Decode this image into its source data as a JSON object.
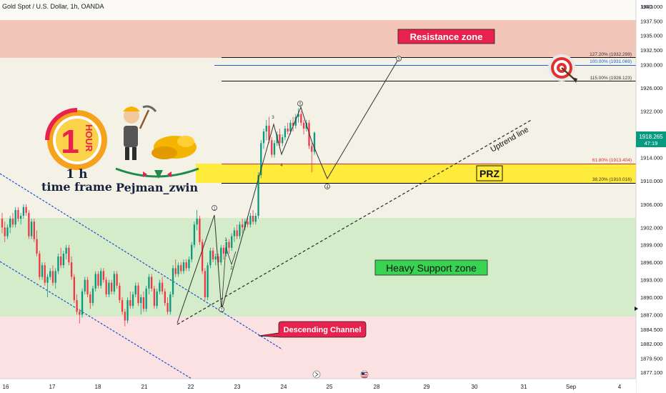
{
  "header": {
    "title": "Gold Spot / U.S. Dollar, 1h, OANDA"
  },
  "price_scale": {
    "currency": "USD",
    "ticks": [
      "1940.000",
      "1937.500",
      "1935.000",
      "1932.500",
      "1930.000",
      "1926.000",
      "1922.000",
      "1918.000",
      "1914.000",
      "1910.000",
      "1906.000",
      "1902.000",
      "1899.000",
      "1896.000",
      "1893.000",
      "1890.000",
      "1887.000",
      "1884.500",
      "1882.000",
      "1879.500",
      "1877.100"
    ],
    "last_price": "1918.265",
    "countdown": "47:19",
    "last_price_color": "#089981"
  },
  "time_scale": {
    "ticks": [
      "16",
      "17",
      "18",
      "21",
      "22",
      "23",
      "24",
      "25",
      "28",
      "29",
      "30",
      "31",
      "Sep",
      "4"
    ]
  },
  "zones": {
    "resistance": {
      "label": "Resistance zone",
      "color": "#f2c6b8",
      "label_bg": "#e8214e"
    },
    "support": {
      "label": "Heavy Support zone",
      "color": "#d4ecc9",
      "label_bg": "#39d353"
    },
    "lower": {
      "color": "#fbe1e1"
    },
    "prz": {
      "label": "PRZ",
      "color": "#ffeb3b"
    }
  },
  "fib_levels": [
    {
      "label": "127.20% (1932.299)"
    },
    {
      "label": "100.00% (1931.069)"
    },
    {
      "label": "115.00% (1928.123)"
    },
    {
      "label": "61.80% (1913.404)"
    },
    {
      "label": "38.20% (1910.016)"
    }
  ],
  "annotations": {
    "uptrend": "Uptrend line",
    "descending": "Descending Channel",
    "wave_points": [
      "1",
      "2",
      "3",
      "4",
      "5"
    ]
  },
  "badge": {
    "hour_digit": "1",
    "hour_word": "HOUR",
    "timeframe_1": "1 h",
    "timeframe_2": "time frame",
    "author": "Pejman_zwin"
  },
  "chart_data": {
    "type": "candlestick",
    "title": "Gold Spot / U.S. Dollar, 1h, OANDA",
    "y_unit": "USD",
    "ylim": [
      1876,
      1941
    ],
    "x_labels": [
      "16",
      "17",
      "18",
      "21",
      "22",
      "23",
      "24",
      "25",
      "28",
      "29",
      "30",
      "31",
      "Sep",
      "4"
    ],
    "last_price": 1918.265,
    "zones": [
      {
        "name": "Resistance zone",
        "from": 1932.3,
        "to": 1941.0
      },
      {
        "name": "PRZ",
        "from": 1910.016,
        "to": 1913.404
      },
      {
        "name": "Heavy Support zone",
        "from": 1887.0,
        "to": 1904.4
      }
    ],
    "fibonacci": [
      {
        "ratio": "127.20%",
        "price": 1932.299
      },
      {
        "ratio": "100.00%",
        "price": 1931.069
      },
      {
        "ratio": "115.00%",
        "price": 1928.123
      },
      {
        "ratio": "61.80%",
        "price": 1913.404
      },
      {
        "ratio": "38.20%",
        "price": 1910.016
      }
    ],
    "candles": [
      [
        1903.5,
        1904.5,
        1901.0,
        1902.0
      ],
      [
        1902.0,
        1903.0,
        1899.5,
        1900.5
      ],
      [
        1900.5,
        1902.5,
        1900.0,
        1902.0
      ],
      [
        1902.0,
        1904.0,
        1901.0,
        1903.5
      ],
      [
        1903.5,
        1904.5,
        1902.0,
        1902.5
      ],
      [
        1902.5,
        1905.5,
        1902.0,
        1905.0
      ],
      [
        1905.0,
        1905.5,
        1903.0,
        1903.5
      ],
      [
        1903.5,
        1904.5,
        1902.5,
        1904.0
      ],
      [
        1904.0,
        1906.0,
        1903.5,
        1905.5
      ],
      [
        1905.5,
        1906.0,
        1904.0,
        1904.5
      ],
      [
        1904.5,
        1905.0,
        1900.0,
        1900.5
      ],
      [
        1900.5,
        1903.5,
        1900.0,
        1903.0
      ],
      [
        1903.0,
        1903.5,
        1899.5,
        1900.0
      ],
      [
        1900.0,
        1901.5,
        1897.0,
        1897.5
      ],
      [
        1897.5,
        1898.0,
        1893.0,
        1893.5
      ],
      [
        1893.5,
        1896.0,
        1893.0,
        1895.5
      ],
      [
        1895.5,
        1896.0,
        1892.0,
        1892.5
      ],
      [
        1892.5,
        1894.0,
        1890.0,
        1893.5
      ],
      [
        1893.5,
        1895.0,
        1893.0,
        1894.5
      ],
      [
        1894.5,
        1895.5,
        1892.0,
        1892.5
      ],
      [
        1892.5,
        1895.0,
        1891.5,
        1894.5
      ],
      [
        1894.5,
        1897.5,
        1894.0,
        1897.0
      ],
      [
        1897.0,
        1898.5,
        1895.0,
        1895.5
      ],
      [
        1895.5,
        1898.0,
        1895.0,
        1897.5
      ],
      [
        1897.5,
        1899.0,
        1896.5,
        1898.5
      ],
      [
        1898.5,
        1899.0,
        1895.5,
        1896.0
      ],
      [
        1896.0,
        1897.0,
        1893.0,
        1893.5
      ],
      [
        1893.5,
        1894.0,
        1889.0,
        1889.5
      ],
      [
        1889.5,
        1890.5,
        1887.0,
        1887.5
      ],
      [
        1887.5,
        1888.0,
        1885.5,
        1887.0
      ],
      [
        1887.0,
        1891.5,
        1886.5,
        1891.0
      ],
      [
        1891.0,
        1893.5,
        1890.5,
        1893.0
      ],
      [
        1893.0,
        1893.5,
        1890.0,
        1890.5
      ],
      [
        1890.5,
        1891.0,
        1888.0,
        1889.0
      ],
      [
        1889.0,
        1892.0,
        1888.5,
        1891.5
      ],
      [
        1891.5,
        1894.5,
        1891.0,
        1894.0
      ],
      [
        1894.0,
        1894.5,
        1891.5,
        1892.0
      ],
      [
        1892.0,
        1895.0,
        1891.5,
        1894.5
      ],
      [
        1894.5,
        1895.0,
        1892.5,
        1893.0
      ],
      [
        1893.0,
        1893.5,
        1890.0,
        1890.5
      ],
      [
        1890.5,
        1893.0,
        1890.0,
        1892.5
      ],
      [
        1892.5,
        1893.0,
        1890.5,
        1891.0
      ],
      [
        1891.0,
        1894.5,
        1890.5,
        1894.0
      ],
      [
        1894.0,
        1894.5,
        1891.5,
        1892.0
      ],
      [
        1892.0,
        1892.5,
        1889.0,
        1889.5
      ],
      [
        1889.5,
        1890.0,
        1887.0,
        1887.5
      ],
      [
        1887.5,
        1888.0,
        1885.0,
        1886.0
      ],
      [
        1886.0,
        1890.0,
        1885.5,
        1889.5
      ],
      [
        1889.5,
        1891.0,
        1888.0,
        1888.5
      ],
      [
        1888.5,
        1891.0,
        1888.0,
        1890.5
      ],
      [
        1890.5,
        1892.5,
        1890.0,
        1892.0
      ],
      [
        1892.0,
        1892.5,
        1888.5,
        1889.0
      ],
      [
        1889.0,
        1890.5,
        1887.0,
        1890.0
      ],
      [
        1890.0,
        1891.0,
        1887.5,
        1888.0
      ],
      [
        1888.0,
        1892.0,
        1887.5,
        1891.5
      ],
      [
        1891.5,
        1894.0,
        1890.5,
        1893.5
      ],
      [
        1893.5,
        1894.0,
        1891.0,
        1891.5
      ],
      [
        1891.5,
        1892.0,
        1888.0,
        1888.5
      ],
      [
        1888.5,
        1891.5,
        1888.0,
        1891.0
      ],
      [
        1891.0,
        1893.0,
        1890.5,
        1892.5
      ],
      [
        1892.5,
        1893.5,
        1890.5,
        1891.0
      ],
      [
        1891.0,
        1891.5,
        1888.5,
        1889.0
      ],
      [
        1889.0,
        1890.0,
        1887.0,
        1887.5
      ],
      [
        1887.5,
        1891.0,
        1887.0,
        1890.5
      ],
      [
        1890.5,
        1895.5,
        1890.0,
        1895.0
      ],
      [
        1895.0,
        1896.5,
        1893.5,
        1894.0
      ],
      [
        1894.0,
        1896.0,
        1893.5,
        1895.5
      ],
      [
        1895.5,
        1896.0,
        1894.0,
        1894.5
      ],
      [
        1894.5,
        1896.5,
        1894.0,
        1896.0
      ],
      [
        1896.0,
        1896.5,
        1894.5,
        1895.0
      ],
      [
        1895.0,
        1897.0,
        1894.5,
        1896.5
      ],
      [
        1896.5,
        1899.5,
        1896.0,
        1899.0
      ],
      [
        1899.0,
        1903.0,
        1898.5,
        1902.5
      ],
      [
        1902.5,
        1905.0,
        1901.5,
        1903.5
      ],
      [
        1903.5,
        1904.0,
        1899.0,
        1899.5
      ],
      [
        1899.5,
        1900.0,
        1894.0,
        1894.5
      ],
      [
        1894.5,
        1895.0,
        1889.5,
        1890.0
      ],
      [
        1890.0,
        1896.0,
        1889.5,
        1895.5
      ],
      [
        1895.5,
        1898.5,
        1895.0,
        1898.0
      ],
      [
        1898.0,
        1898.5,
        1896.0,
        1896.5
      ],
      [
        1896.5,
        1897.5,
        1895.5,
        1897.0
      ],
      [
        1897.0,
        1897.5,
        1895.0,
        1896.0
      ],
      [
        1896.0,
        1899.0,
        1895.5,
        1898.5
      ],
      [
        1898.5,
        1899.0,
        1896.5,
        1897.5
      ],
      [
        1897.5,
        1900.0,
        1897.0,
        1899.5
      ],
      [
        1899.5,
        1900.0,
        1897.5,
        1898.5
      ],
      [
        1898.5,
        1901.0,
        1898.0,
        1900.5
      ],
      [
        1900.5,
        1902.0,
        1899.5,
        1901.5
      ],
      [
        1901.5,
        1902.5,
        1900.0,
        1900.5
      ],
      [
        1900.5,
        1903.0,
        1900.0,
        1902.5
      ],
      [
        1902.5,
        1903.5,
        1901.0,
        1902.0
      ],
      [
        1902.0,
        1903.5,
        1901.5,
        1903.0
      ],
      [
        1903.0,
        1904.0,
        1902.0,
        1902.5
      ],
      [
        1902.5,
        1904.5,
        1902.0,
        1904.0
      ],
      [
        1904.0,
        1905.0,
        1902.5,
        1903.0
      ],
      [
        1903.0,
        1904.5,
        1902.5,
        1904.0
      ],
      [
        1904.0,
        1911.5,
        1903.5,
        1911.0
      ],
      [
        1911.0,
        1917.0,
        1910.5,
        1916.5
      ],
      [
        1916.5,
        1919.0,
        1915.5,
        1918.5
      ],
      [
        1918.5,
        1920.5,
        1917.0,
        1919.5
      ],
      [
        1919.5,
        1921.0,
        1916.5,
        1917.0
      ],
      [
        1917.0,
        1917.5,
        1914.0,
        1914.5
      ],
      [
        1914.5,
        1917.0,
        1914.0,
        1916.5
      ],
      [
        1916.5,
        1918.5,
        1916.0,
        1918.0
      ],
      [
        1918.0,
        1919.0,
        1916.0,
        1916.5
      ],
      [
        1916.5,
        1918.0,
        1916.0,
        1917.5
      ],
      [
        1917.5,
        1919.5,
        1917.0,
        1919.0
      ],
      [
        1919.0,
        1920.0,
        1918.0,
        1918.5
      ],
      [
        1918.5,
        1920.5,
        1918.0,
        1920.0
      ],
      [
        1920.0,
        1921.0,
        1918.5,
        1919.5
      ],
      [
        1919.5,
        1921.5,
        1919.0,
        1921.0
      ],
      [
        1921.0,
        1922.5,
        1920.0,
        1921.5
      ],
      [
        1921.5,
        1922.0,
        1919.5,
        1920.0
      ],
      [
        1920.0,
        1920.5,
        1918.0,
        1919.0
      ],
      [
        1919.0,
        1920.5,
        1918.5,
        1920.0
      ],
      [
        1920.0,
        1920.5,
        1915.5,
        1916.0
      ],
      [
        1916.0,
        1916.5,
        1911.5,
        1915.0
      ],
      [
        1915.0,
        1918.5,
        1914.5,
        1918.3
      ]
    ]
  }
}
